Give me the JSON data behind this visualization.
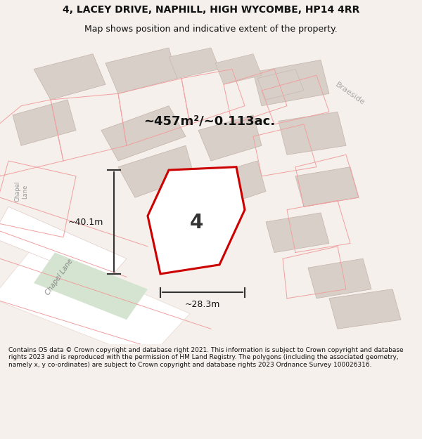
{
  "title_line1": "4, LACEY DRIVE, NAPHILL, HIGH WYCOMBE, HP14 4RR",
  "title_line2": "Map shows position and indicative extent of the property.",
  "footer": "Contains OS data © Crown copyright and database right 2021. This information is subject to Crown copyright and database rights 2023 and is reproduced with the permission of HM Land Registry. The polygons (including the associated geometry, namely x, y co-ordinates) are subject to Crown copyright and database rights 2023 Ordnance Survey 100026316.",
  "area_label": "~457m²/~0.113ac.",
  "number_label": "4",
  "dim_h": "~40.1m",
  "dim_w": "~28.3m",
  "road_label1": "Chapel Lane",
  "road_label2": "Braeside",
  "road_label3": "Chapel Lane",
  "bg_color": "#f2ede8",
  "map_bg": "#f5f0eb",
  "road_color": "#ffffff",
  "building_fill": "#d8d0c8",
  "building_outline": "#c8b8b0",
  "plot_fill": "#ffffff",
  "plot_outline": "#cc0000",
  "green_fill": "#d4e4d0",
  "road_outline": "#e8d8d0",
  "dim_color": "#333333",
  "title_color": "#111111",
  "footer_color": "#111111"
}
